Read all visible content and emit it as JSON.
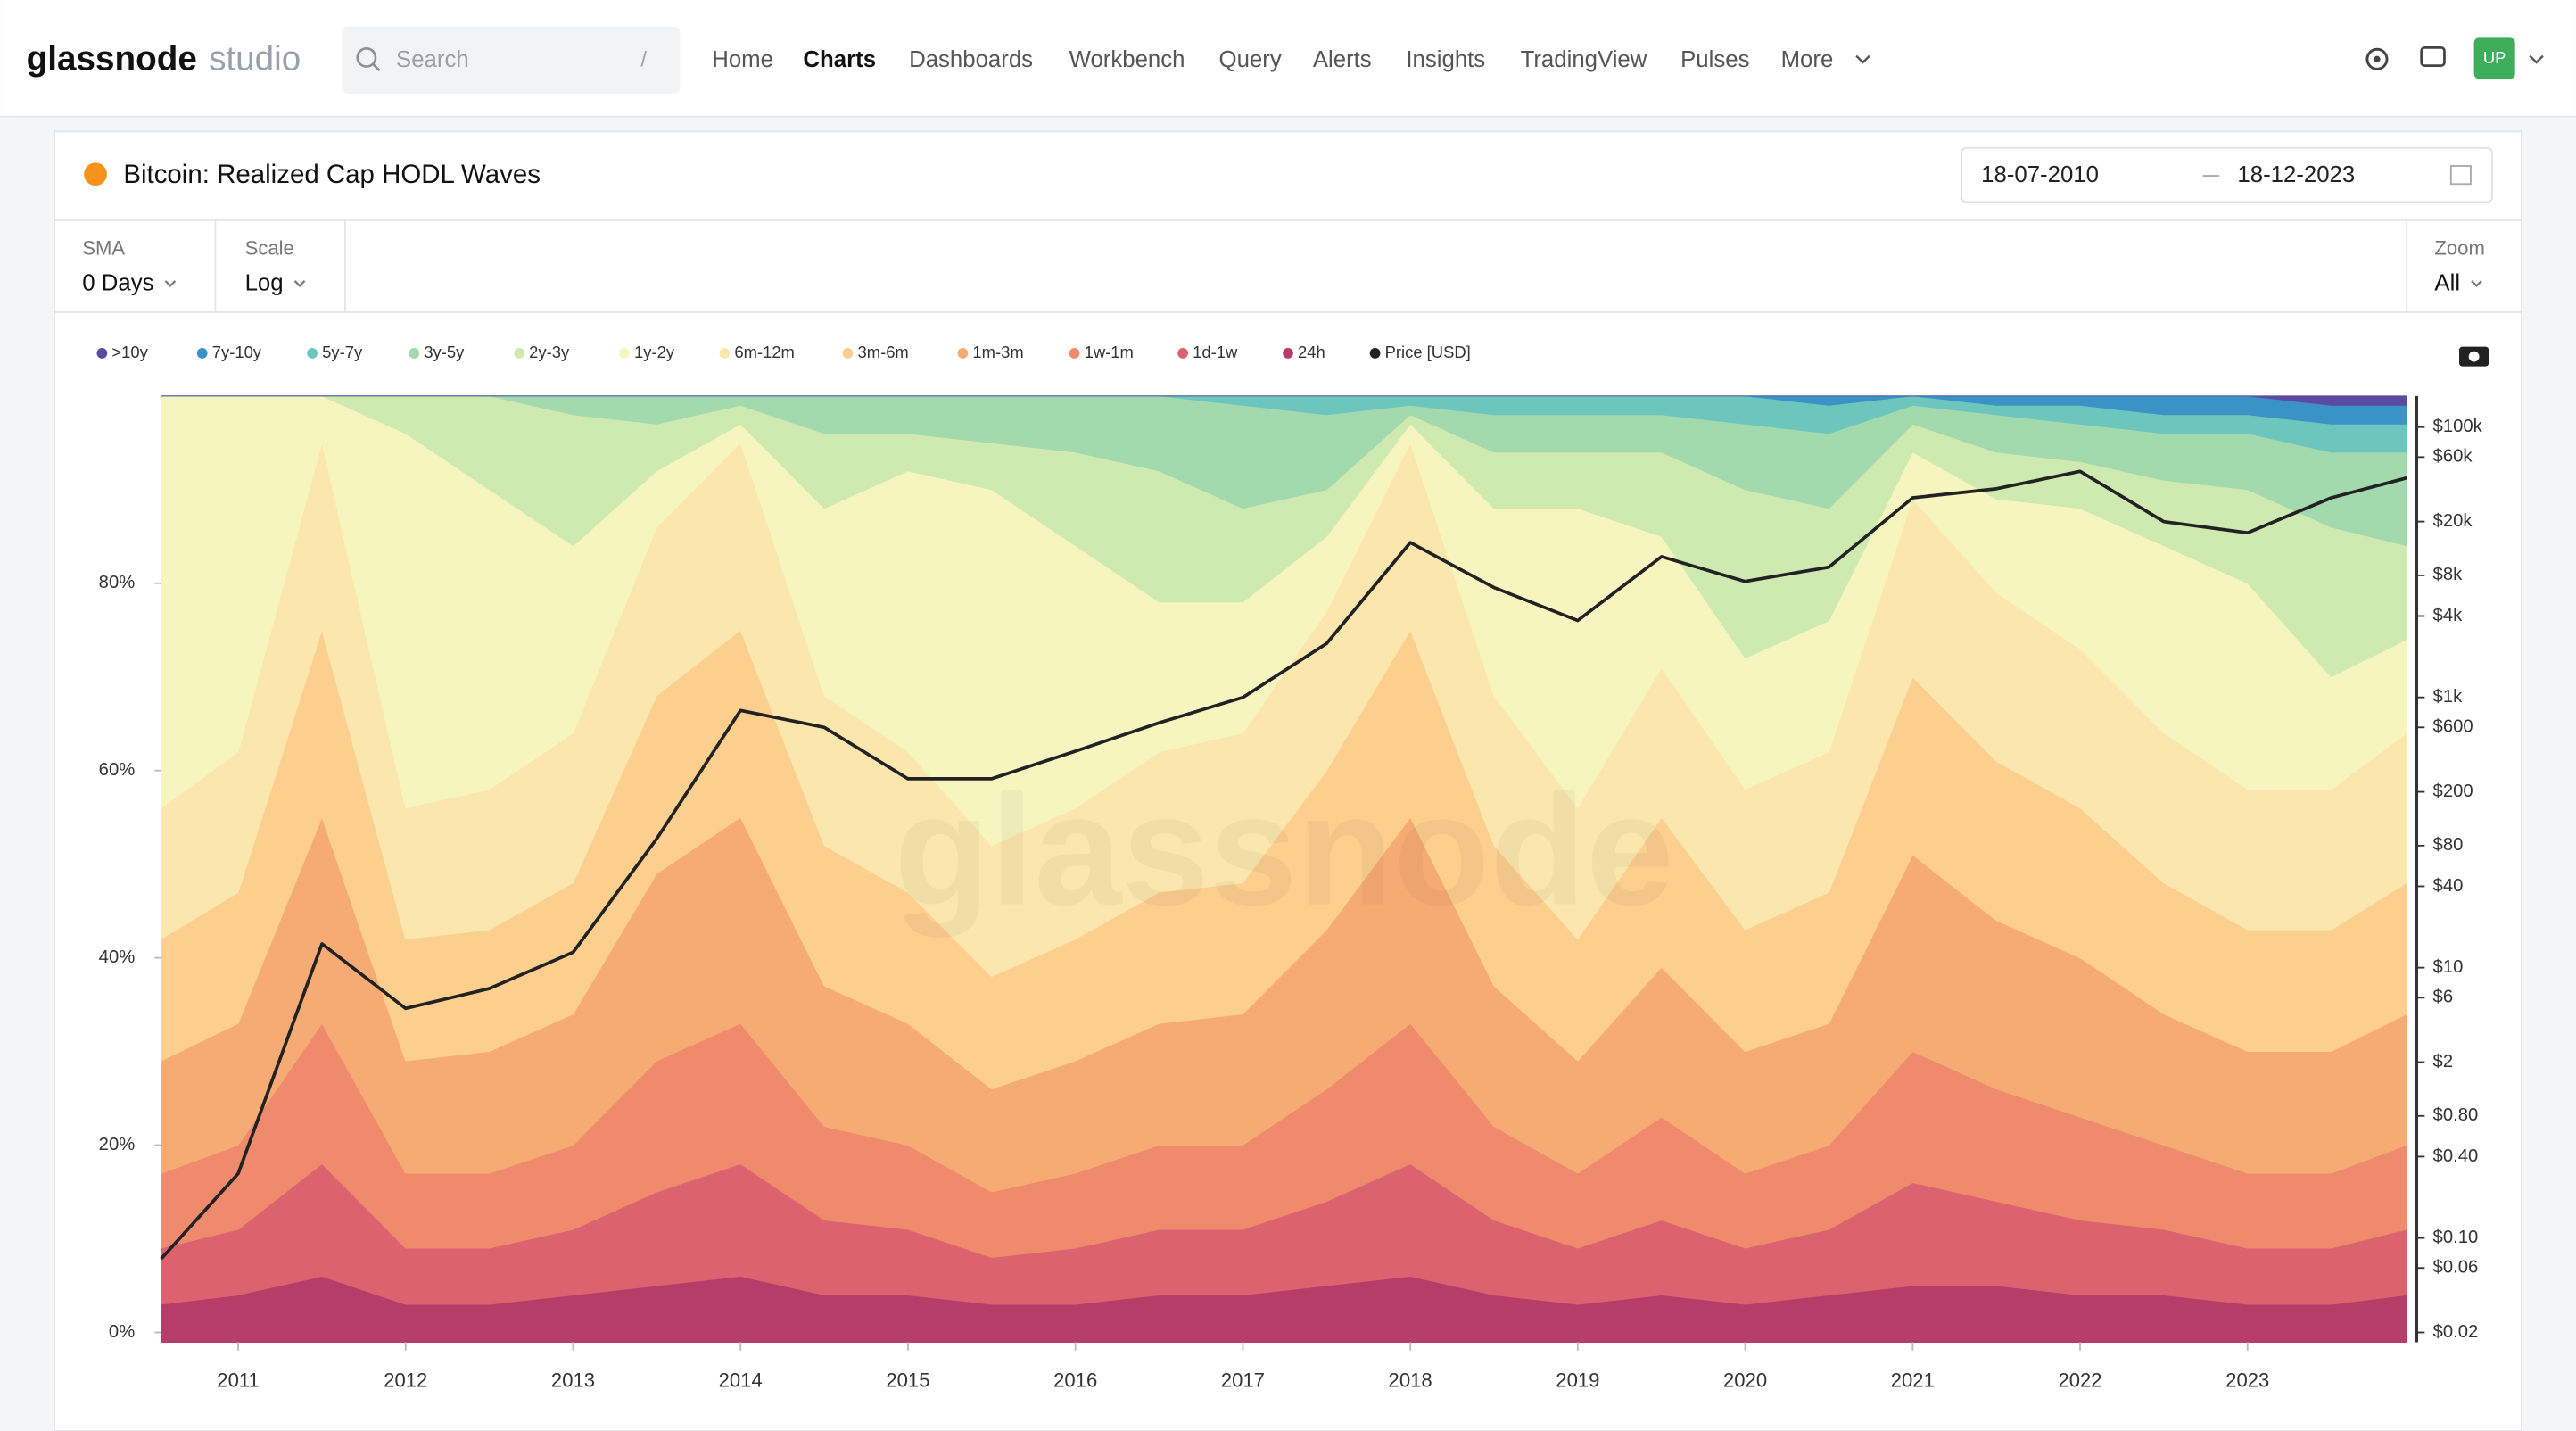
{
  "header": {
    "logo": "glassnode",
    "logo_suffix": "studio",
    "search_placeholder": "Search",
    "search_shortcut": "/",
    "nav": [
      "Home",
      "Charts",
      "Dashboards",
      "Workbench",
      "Query",
      "Alerts",
      "Insights",
      "TradingView",
      "Pulses",
      "More"
    ],
    "active_nav": 1,
    "avatar": "UP"
  },
  "card": {
    "title": "Bitcoin: Realized Cap HODL Waves",
    "date_from": "18-07-2010",
    "date_to": "18-12-2023",
    "controls": [
      {
        "label": "SMA",
        "value": "0 Days"
      },
      {
        "label": "Scale",
        "value": "Log"
      },
      {
        "label": "Zoom",
        "value": "All"
      }
    ],
    "watermark": "glassnode"
  },
  "chart_data": {
    "type": "stacked_area",
    "y2_log": true,
    "grid": false,
    "x": [
      2010.54,
      2011.0,
      2011.5,
      2012.0,
      2012.5,
      2013.0,
      2013.5,
      2014.0,
      2014.5,
      2015.0,
      2015.5,
      2016.0,
      2016.5,
      2017.0,
      2017.5,
      2018.0,
      2018.5,
      2019.0,
      2019.5,
      2020.0,
      2020.5,
      2021.0,
      2021.5,
      2022.0,
      2022.5,
      2023.0,
      2023.5,
      2023.95
    ],
    "xlim": [
      2010.54,
      2023.95
    ],
    "xticks": [
      2011,
      2012,
      2013,
      2014,
      2015,
      2016,
      2017,
      2018,
      2019,
      2020,
      2021,
      2022,
      2023
    ],
    "ylim": [
      0,
      100
    ],
    "yticks": [
      {
        "value": 0,
        "label": "0%"
      },
      {
        "value": 20,
        "label": "20%"
      },
      {
        "value": 40,
        "label": "40%"
      },
      {
        "value": 60,
        "label": "60%"
      },
      {
        "value": 80,
        "label": "80%"
      }
    ],
    "y2lim": [
      0.02,
      170000
    ],
    "y2ticks": [
      {
        "value": 0.02,
        "label": "$0.02"
      },
      {
        "value": 0.06,
        "label": "$0.06"
      },
      {
        "value": 0.1,
        "label": "$0.10"
      },
      {
        "value": 0.4,
        "label": "$0.40"
      },
      {
        "value": 0.8,
        "label": "$0.80"
      },
      {
        "value": 2,
        "label": "$2"
      },
      {
        "value": 6,
        "label": "$6"
      },
      {
        "value": 10,
        "label": "$10"
      },
      {
        "value": 40,
        "label": "$40"
      },
      {
        "value": 80,
        "label": "$80"
      },
      {
        "value": 200,
        "label": "$200"
      },
      {
        "value": 600,
        "label": "$600"
      },
      {
        "value": 1000,
        "label": "$1k"
      },
      {
        "value": 4000,
        "label": "$4k"
      },
      {
        "value": 8000,
        "label": "$8k"
      },
      {
        "value": 20000,
        "label": "$20k"
      },
      {
        "value": 60000,
        "label": "$60k"
      },
      {
        "value": 100000,
        "label": "$100k"
      }
    ],
    "series": [
      {
        "name": ">10y",
        "color": "#5a4aa0",
        "values": [
          0,
          0,
          0,
          0,
          0,
          0,
          0,
          0,
          0,
          0,
          0,
          0,
          0,
          0,
          0,
          0,
          0,
          0,
          0,
          0,
          0,
          0,
          0,
          0,
          0,
          0,
          1,
          1
        ]
      },
      {
        "name": "7y-10y",
        "color": "#3a93c4",
        "values": [
          0,
          0,
          0,
          0,
          0,
          0,
          0,
          0,
          0,
          0,
          0,
          0,
          0,
          0,
          0,
          0,
          0,
          0,
          0,
          0,
          1,
          0,
          1,
          1,
          2,
          2,
          2,
          2
        ]
      },
      {
        "name": "5y-7y",
        "color": "#6cc6bd",
        "values": [
          0,
          0,
          0,
          0,
          0,
          0,
          0,
          0,
          0,
          0,
          0,
          0,
          0,
          1,
          2,
          1,
          2,
          2,
          2,
          3,
          3,
          1,
          1,
          2,
          2,
          2,
          3,
          3
        ]
      },
      {
        "name": "3y-5y",
        "color": "#a2d9ad",
        "values": [
          0,
          0,
          0,
          0,
          0,
          2,
          3,
          1,
          4,
          4,
          5,
          6,
          8,
          11,
          8,
          1,
          4,
          4,
          4,
          7,
          8,
          2,
          4,
          4,
          5,
          6,
          8,
          10
        ]
      },
      {
        "name": "2y-3y",
        "color": "#cfeab0",
        "values": [
          0,
          0,
          0,
          4,
          10,
          14,
          5,
          2,
          8,
          4,
          5,
          10,
          14,
          10,
          5,
          1,
          6,
          6,
          9,
          18,
          12,
          3,
          5,
          5,
          7,
          10,
          16,
          10
        ]
      },
      {
        "name": "1y-2y",
        "color": "#f7f5bf",
        "values": [
          44,
          38,
          5,
          40,
          32,
          20,
          6,
          2,
          20,
          30,
          38,
          28,
          16,
          14,
          8,
          2,
          20,
          32,
          14,
          14,
          14,
          5,
          10,
          15,
          20,
          22,
          12,
          10
        ]
      },
      {
        "name": "6m-12m",
        "color": "#fbe6ad",
        "values": [
          14,
          15,
          20,
          14,
          15,
          16,
          18,
          20,
          16,
          15,
          14,
          14,
          15,
          16,
          17,
          20,
          16,
          14,
          16,
          15,
          15,
          19,
          18,
          17,
          16,
          15,
          15,
          16
        ]
      },
      {
        "name": "3m-6m",
        "color": "#fccf8e",
        "values": [
          13,
          14,
          20,
          13,
          13,
          14,
          19,
          20,
          15,
          14,
          12,
          13,
          14,
          14,
          17,
          20,
          15,
          13,
          16,
          13,
          14,
          19,
          17,
          16,
          14,
          13,
          13,
          14
        ]
      },
      {
        "name": "1m-3m",
        "color": "#f7ab74",
        "values": [
          12,
          13,
          22,
          12,
          13,
          14,
          20,
          22,
          15,
          13,
          11,
          12,
          13,
          14,
          17,
          22,
          15,
          12,
          16,
          13,
          13,
          21,
          18,
          17,
          14,
          13,
          13,
          14
        ]
      },
      {
        "name": "1w-1m",
        "color": "#f08a6c",
        "values": [
          8,
          9,
          15,
          8,
          8,
          9,
          14,
          15,
          10,
          9,
          7,
          8,
          9,
          9,
          12,
          15,
          10,
          8,
          11,
          8,
          9,
          14,
          12,
          11,
          9,
          8,
          8,
          9
        ]
      },
      {
        "name": "1d-1w",
        "color": "#dc6270",
        "values": [
          6,
          7,
          12,
          6,
          6,
          7,
          10,
          12,
          8,
          7,
          5,
          6,
          7,
          7,
          9,
          12,
          8,
          6,
          8,
          6,
          7,
          11,
          9,
          8,
          7,
          6,
          6,
          7
        ]
      },
      {
        "name": "24h",
        "color": "#b73d69",
        "values": [
          3,
          4,
          6,
          3,
          3,
          4,
          5,
          6,
          4,
          4,
          3,
          3,
          4,
          4,
          5,
          6,
          4,
          3,
          4,
          3,
          4,
          5,
          5,
          4,
          4,
          3,
          3,
          4
        ]
      },
      {
        "name": "Price [USD]",
        "color": "#222222",
        "axis": "y2",
        "values": [
          0.07,
          0.3,
          15,
          5,
          7,
          13,
          90,
          800,
          600,
          250,
          250,
          400,
          650,
          1000,
          2500,
          14000,
          6500,
          3700,
          11000,
          7200,
          9200,
          30000,
          35000,
          47000,
          20000,
          16500,
          30000,
          42000
        ]
      }
    ]
  }
}
